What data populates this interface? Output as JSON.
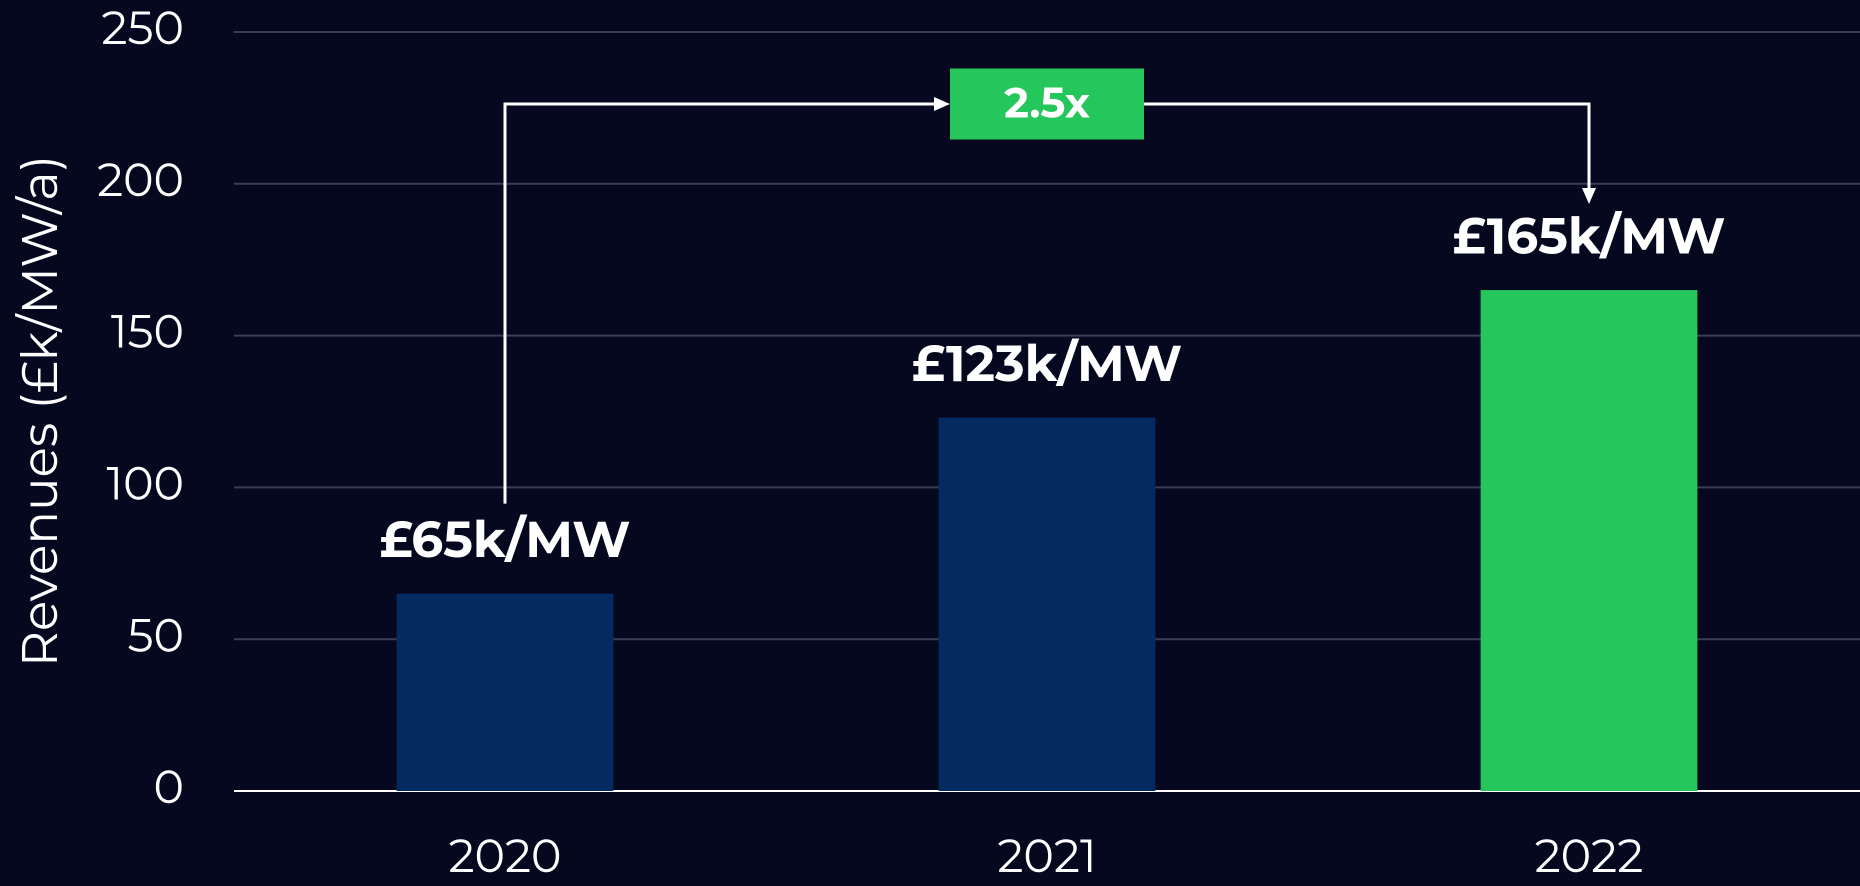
{
  "chart_data": {
    "type": "bar",
    "y_label": "Revenues (£k/MW/a)",
    "categories": [
      "2020",
      "2021",
      "2022"
    ],
    "values": [
      65,
      123,
      165
    ],
    "value_labels": [
      "£65k/MW",
      "£123k/MW",
      "£165k/MW"
    ],
    "colors": [
      "#052a62",
      "#052a62",
      "#25c65c"
    ],
    "annotation": "2.5x",
    "annotation_color": "#25c65c",
    "ylim": [
      0,
      250
    ],
    "yticks": [
      0,
      50,
      100,
      150,
      200,
      250
    ],
    "grid": true
  }
}
